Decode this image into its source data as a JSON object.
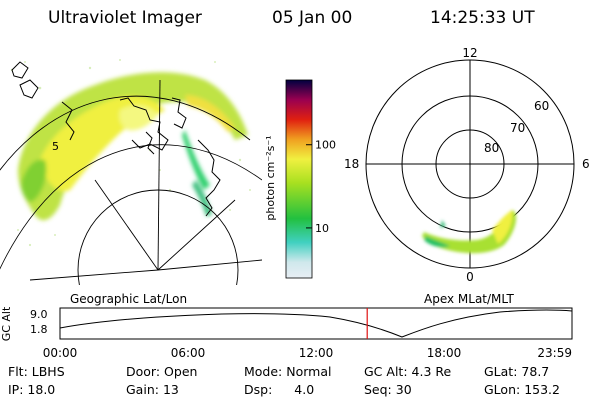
{
  "header": {
    "title": "Ultraviolet Imager",
    "date": "05 Jan 00",
    "time": "14:25:33 UT"
  },
  "left_panel": {
    "caption": "Geographic Lat/Lon",
    "grid_label": "5"
  },
  "colorbar": {
    "unit_label": "photon cm⁻²s⁻¹",
    "ticks": [
      {
        "value": 100,
        "label": "100"
      },
      {
        "value": 10,
        "label": "10"
      }
    ],
    "scale": "log",
    "colors": [
      "#e8eef4",
      "#40d0c0",
      "#22c040",
      "#a8e020",
      "#f0f040",
      "#f0a020",
      "#e02010",
      "#9a0050",
      "#000040"
    ]
  },
  "right_panel": {
    "caption": "Apex MLat/MLT",
    "mlt_labels": {
      "top": "12",
      "right": "6",
      "bottom": "0",
      "left": "18"
    },
    "mlat_labels": [
      "60",
      "70",
      "80"
    ]
  },
  "timeline": {
    "ylabel": "GC Alt",
    "yticks": [
      "9.0",
      "1.8"
    ],
    "xticks": [
      "00:00",
      "06:00",
      "12:00",
      "18:00",
      "23:59"
    ],
    "current_time_fraction": 0.6
  },
  "status": {
    "flt": {
      "label": "Flt:",
      "value": "LBHS"
    },
    "ip": {
      "label": "IP:",
      "value": "18.0"
    },
    "door": {
      "label": "Door:",
      "value": "Open"
    },
    "gain": {
      "label": "Gain:",
      "value": "13"
    },
    "mode": {
      "label": "Mode:",
      "value": "Normal"
    },
    "dsp": {
      "label": "Dsp:",
      "value": "4.0"
    },
    "gcalt": {
      "label": "GC Alt:",
      "value": "4.3 Re"
    },
    "seq": {
      "label": "Seq:",
      "value": "30"
    },
    "glat": {
      "label": "GLat:",
      "value": "78.7"
    },
    "glon": {
      "label": "GLon:",
      "value": "153.2"
    }
  }
}
